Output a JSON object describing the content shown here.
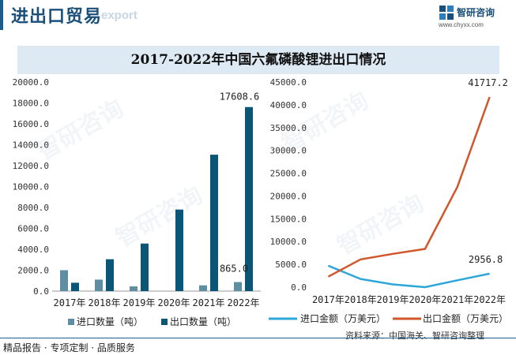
{
  "header": {
    "title": "进出口贸易",
    "subtitle": "export",
    "logo_name": "智研咨询",
    "logo_url": "www.chyxx.com"
  },
  "watermark_text": "智研咨询",
  "colors": {
    "import_bar": "#5f8ea3",
    "export_bar": "#0b5676",
    "import_line": "#2ea7d8",
    "export_line": "#d2562b",
    "brand": "#1a4f7a"
  },
  "chart_data": [
    {
      "type": "bar",
      "title": "2017-2022年中国六氟磷酸锂进出口情况",
      "categories": [
        "2017年",
        "2018年",
        "2019年",
        "2020年",
        "2021年",
        "2022年"
      ],
      "ylim": [
        0,
        20000
      ],
      "yticks": [
        "0.0",
        "2000.0",
        "4000.0",
        "6000.0",
        "8000.0",
        "10000.0",
        "12000.0",
        "14000.0",
        "16000.0",
        "18000.0",
        "20000.0"
      ],
      "series": [
        {
          "name": "进口数量（吨）",
          "values": [
            2000,
            1100,
            450,
            0,
            550,
            865.0
          ]
        },
        {
          "name": "出口数量（吨）",
          "values": [
            800,
            3050,
            4550,
            7800,
            13050,
            17608.6
          ]
        }
      ],
      "data_labels": {
        "import_last": "865.0",
        "export_last": "17608.6"
      },
      "legend_position": "bottom"
    },
    {
      "type": "line",
      "categories": [
        "2017年",
        "2018年",
        "2019年",
        "2020年",
        "2021年",
        "2022年"
      ],
      "ylim": [
        0,
        45000
      ],
      "yticks": [
        "0.0",
        "5000.0",
        "10000.0",
        "15000.0",
        "20000.0",
        "25000.0",
        "30000.0",
        "35000.0",
        "40000.0",
        "45000.0"
      ],
      "series": [
        {
          "name": "进口金额（万美元）",
          "values": [
            4700,
            1800,
            600,
            0,
            1500,
            2956.8
          ]
        },
        {
          "name": "出口金额（万美元）",
          "values": [
            2300,
            6100,
            7300,
            8400,
            22000,
            41717.2
          ]
        }
      ],
      "data_labels": {
        "import_last": "2956.8",
        "export_last": "41717.2"
      },
      "legend_position": "bottom"
    }
  ],
  "footer": {
    "left": "精品报告 · 专项定制 · 品质服务",
    "source": "资料来源：中国海关、智研咨询整理"
  }
}
